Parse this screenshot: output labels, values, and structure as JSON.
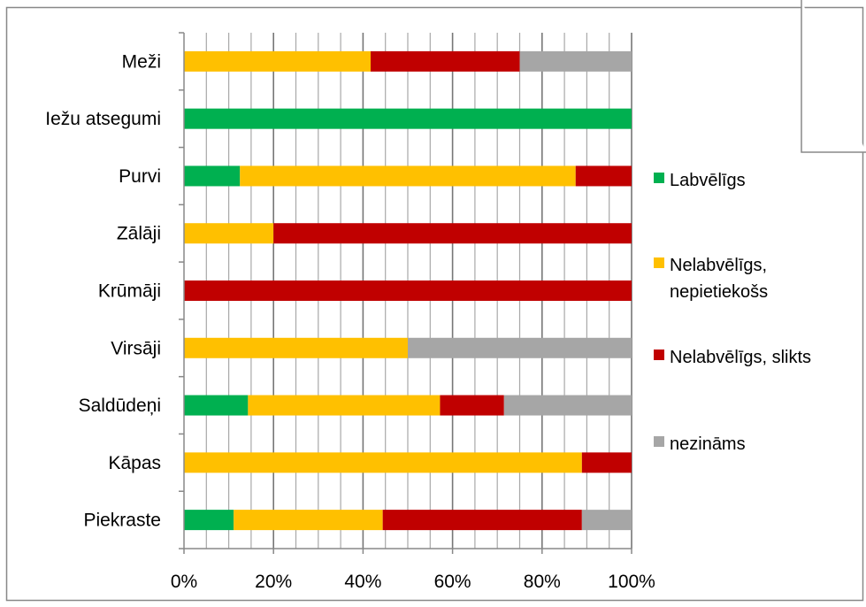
{
  "chart_data": {
    "type": "bar",
    "orientation": "horizontal",
    "stacked": "percent",
    "categories": [
      "Meži",
      "Iežu atsegumi",
      "Purvi",
      "Zālāji",
      "Krūmāji",
      "Virsāji",
      "Saldūdeņi",
      "Kāpas",
      "Piekraste"
    ],
    "series": [
      {
        "name": "Labvēlīgs",
        "color": "#00b050",
        "values": [
          0,
          100,
          12.5,
          0,
          0,
          0,
          14.3,
          0,
          11.1
        ]
      },
      {
        "name": "Nelabvēlīgs, nepietiekošs",
        "color": "#ffc000",
        "values": [
          41.7,
          0,
          75.0,
          20.0,
          0,
          50.0,
          42.9,
          88.9,
          33.3
        ]
      },
      {
        "name": "Nelabvēlīgs, slikts",
        "color": "#c00000",
        "values": [
          33.3,
          0,
          12.5,
          80.0,
          100,
          0,
          14.3,
          11.1,
          44.5
        ]
      },
      {
        "name": "nezināms",
        "color": "#a6a6a6",
        "values": [
          25.0,
          0,
          0,
          0,
          0,
          50.0,
          28.5,
          0,
          11.1
        ]
      }
    ],
    "x_ticks": [
      "0%",
      "20%",
      "40%",
      "60%",
      "80%",
      "100%"
    ],
    "xlim": [
      0,
      100
    ],
    "legend": {
      "position": "right",
      "entries": [
        {
          "lines": [
            "Labvēlīgs"
          ]
        },
        {
          "lines": [
            "Nelabvēlīgs,",
            "nepietiekošs"
          ]
        },
        {
          "lines": [
            "Nelabvēlīgs, slikts"
          ]
        },
        {
          "lines": [
            "nezināms"
          ]
        }
      ]
    },
    "grid": true
  }
}
